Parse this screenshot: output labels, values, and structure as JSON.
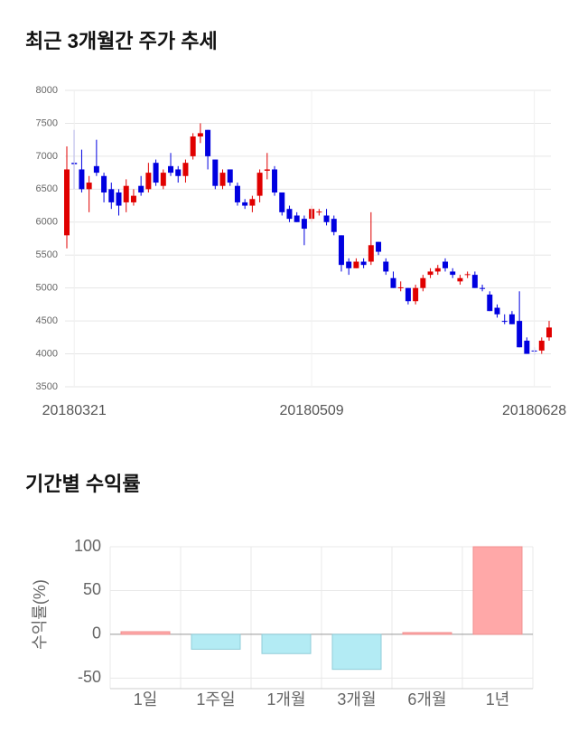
{
  "chart_data": [
    {
      "type": "candlestick",
      "title": "최근 3개월간 주가 추세",
      "categories": [
        null,
        "20180321",
        null,
        null,
        null,
        null,
        null,
        null,
        null,
        null,
        null,
        null,
        null,
        null,
        null,
        null,
        null,
        null,
        null,
        null,
        null,
        null,
        null,
        null,
        null,
        null,
        null,
        null,
        null,
        null,
        null,
        null,
        null,
        "20180509",
        null,
        null,
        null,
        null,
        null,
        null,
        null,
        null,
        null,
        null,
        null,
        null,
        null,
        null,
        null,
        null,
        null,
        null,
        null,
        null,
        null,
        null,
        null,
        null,
        null,
        null,
        null,
        null,
        null,
        "20180628",
        null,
        null
      ],
      "open": [
        5800,
        6900,
        6800,
        6500,
        6850,
        6700,
        6500,
        6450,
        6300,
        6300,
        6550,
        6500,
        6900,
        6550,
        6850,
        6800,
        6700,
        7000,
        7300,
        7400,
        6950,
        6550,
        6800,
        6550,
        6300,
        6250,
        6400,
        6780,
        6800,
        6450,
        6200,
        6100,
        6050,
        6050,
        6150,
        6100,
        6050,
        5800,
        5400,
        5300,
        5400,
        5400,
        5700,
        5400,
        5150,
        5000,
        5000,
        4800,
        5000,
        5200,
        5250,
        5400,
        5250,
        5100,
        5200,
        5200,
        5000,
        4900,
        4700,
        4500,
        4600,
        4500,
        4200,
        4050,
        4050,
        4250
      ],
      "high": [
        7150,
        7400,
        7100,
        6700,
        7250,
        6750,
        6600,
        6500,
        6650,
        6500,
        6700,
        6900,
        6950,
        6800,
        7050,
        6850,
        6950,
        7350,
        7500,
        7400,
        6950,
        6800,
        6800,
        6600,
        6350,
        6400,
        6800,
        7050,
        6850,
        6450,
        6250,
        6150,
        6100,
        6250,
        6200,
        6200,
        6100,
        5800,
        5450,
        5450,
        5450,
        6150,
        5700,
        5450,
        5250,
        5100,
        5000,
        5050,
        5200,
        5300,
        5350,
        5450,
        5300,
        5200,
        5250,
        5250,
        5050,
        4950,
        4750,
        4600,
        4650,
        4950,
        4250,
        4100,
        4250,
        4500
      ],
      "low": [
        5600,
        6500,
        6450,
        6150,
        6700,
        6300,
        6200,
        6100,
        6150,
        6250,
        6400,
        6450,
        6550,
        6500,
        6700,
        6600,
        6600,
        6950,
        7200,
        6800,
        6500,
        6500,
        6550,
        6250,
        6200,
        6150,
        6300,
        6650,
        6400,
        6100,
        6000,
        6000,
        5650,
        6000,
        6100,
        5950,
        5800,
        5250,
        5200,
        5300,
        5300,
        5350,
        5500,
        5200,
        5000,
        4950,
        4750,
        4750,
        4950,
        5150,
        5200,
        5250,
        5150,
        5050,
        5150,
        5000,
        4950,
        4650,
        4550,
        4450,
        4450,
        4100,
        4000,
        3980,
        4000,
        4200
      ],
      "close": [
        6800,
        6880,
        6500,
        6600,
        6750,
        6450,
        6300,
        6250,
        6550,
        6400,
        6450,
        6750,
        6600,
        6750,
        6750,
        6700,
        6900,
        7300,
        7350,
        7000,
        6550,
        6750,
        6600,
        6300,
        6250,
        6350,
        6750,
        6800,
        6450,
        6150,
        6050,
        6000,
        5900,
        6200,
        6160,
        6000,
        5850,
        5350,
        5300,
        5400,
        5350,
        5650,
        5550,
        5250,
        5000,
        5010,
        4800,
        5000,
        5150,
        5250,
        5300,
        5300,
        5200,
        5150,
        5210,
        5000,
        4990,
        4650,
        4600,
        4490,
        4450,
        4100,
        4000,
        4040,
        4200,
        4400
      ],
      "up_color": "#e00000",
      "down_color": "#0000e0",
      "ylim": [
        3500,
        8000
      ],
      "yticks": [
        3500,
        4000,
        4500,
        5000,
        5500,
        6000,
        6500,
        7000,
        7500,
        8000
      ],
      "grid": true
    },
    {
      "type": "bar",
      "title": "기간별 수익률",
      "ylabel": "수익률(%)",
      "categories": [
        "1일",
        "1주일",
        "1개월",
        "3개월",
        "6개월",
        "1년"
      ],
      "values": [
        3,
        -17,
        -22,
        -40,
        2,
        100
      ],
      "pos_color": "#ffa8a8",
      "neg_color": "#b3ebf4",
      "ylim": [
        -62,
        100
      ],
      "yticks": [
        -50,
        0,
        50,
        100
      ],
      "grid": true
    }
  ]
}
